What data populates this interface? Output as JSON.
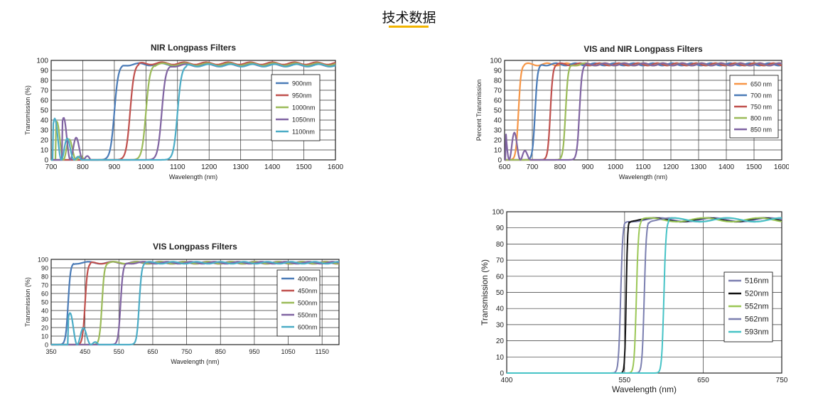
{
  "page": {
    "title": "技术数据"
  },
  "chart_data": [
    {
      "type": "line",
      "title": "NIR Longpass Filters",
      "xlabel": "Wavelength (nm)",
      "ylabel": "Transmission (%)",
      "xlim": [
        700,
        1600
      ],
      "ylim": [
        0,
        100
      ],
      "xticks": [
        700,
        800,
        900,
        1000,
        1100,
        1200,
        1300,
        1400,
        1500,
        1600
      ],
      "yticks": [
        0,
        10,
        20,
        30,
        40,
        50,
        60,
        70,
        80,
        90,
        100
      ],
      "grid": true,
      "legend_position": "right",
      "series": [
        {
          "name": "900nm",
          "color": "#4a7bb7",
          "cutoff": 900,
          "width": 14,
          "plateau": 96,
          "ripple_start": 705,
          "ripple_amp": 0
        },
        {
          "name": "950nm",
          "color": "#c0504d",
          "cutoff": 950,
          "width": 14,
          "plateau": 97,
          "ripple_start": 710,
          "ripple_amp": 0
        },
        {
          "name": "1000nm",
          "color": "#9bbb59",
          "cutoff": 1000,
          "width": 14,
          "plateau": 96,
          "ripple_start": 715,
          "ripple_amp": 40
        },
        {
          "name": "1050nm",
          "color": "#8064a2",
          "cutoff": 1050,
          "width": 14,
          "plateau": 95,
          "ripple_start": 735,
          "ripple_amp": 45
        },
        {
          "name": "1100nm",
          "color": "#4bacc6",
          "cutoff": 1100,
          "width": 14,
          "plateau": 95,
          "ripple_start": 705,
          "ripple_amp": 45
        }
      ]
    },
    {
      "type": "line",
      "title": "VIS and NIR Longpass Filters",
      "xlabel": "Wavelength (nm)",
      "ylabel": "Percent Transmission",
      "xlim": [
        600,
        1600
      ],
      "ylim": [
        0,
        100
      ],
      "xticks": [
        600,
        700,
        800,
        900,
        1000,
        1100,
        1200,
        1300,
        1400,
        1500,
        1600
      ],
      "yticks": [
        0,
        10,
        20,
        30,
        40,
        50,
        60,
        70,
        80,
        90,
        100
      ],
      "grid": true,
      "legend_position": "right",
      "series": [
        {
          "name": "650 nm",
          "color": "#f79646",
          "cutoff": 650,
          "width": 10,
          "plateau": 96,
          "ripple_start": 0,
          "ripple_amp": 0
        },
        {
          "name": "700 nm",
          "color": "#4a7bb7",
          "cutoff": 710,
          "width": 10,
          "plateau": 96,
          "ripple_start": 0,
          "ripple_amp": 0
        },
        {
          "name": "750 nm",
          "color": "#c0504d",
          "cutoff": 765,
          "width": 10,
          "plateau": 96,
          "ripple_start": 0,
          "ripple_amp": 0
        },
        {
          "name": "800 nm",
          "color": "#9bbb59",
          "cutoff": 820,
          "width": 10,
          "plateau": 96,
          "ripple_start": 0,
          "ripple_amp": 0
        },
        {
          "name": "850 nm",
          "color": "#8064a2",
          "cutoff": 870,
          "width": 10,
          "plateau": 96,
          "ripple_start": 605,
          "ripple_amp": 42
        }
      ]
    },
    {
      "type": "line",
      "title": "VIS Longpass Filters",
      "xlabel": "Wavelength (nm)",
      "ylabel": "Transmission (%)",
      "xlim": [
        350,
        1200
      ],
      "ylim": [
        0,
        100
      ],
      "xticks": [
        350,
        450,
        550,
        650,
        750,
        850,
        950,
        1050,
        1150
      ],
      "yticks": [
        0,
        10,
        20,
        30,
        40,
        50,
        60,
        70,
        80,
        90,
        100
      ],
      "grid": true,
      "legend_position": "right",
      "series": [
        {
          "name": "400nm",
          "color": "#4a7bb7",
          "cutoff": 400,
          "width": 8,
          "plateau": 96,
          "ripple_start": 0,
          "ripple_amp": 0
        },
        {
          "name": "450nm",
          "color": "#c0504d",
          "cutoff": 450,
          "width": 8,
          "plateau": 96,
          "ripple_start": 0,
          "ripple_amp": 0
        },
        {
          "name": "500nm",
          "color": "#9bbb59",
          "cutoff": 500,
          "width": 8,
          "plateau": 96,
          "ripple_start": 0,
          "ripple_amp": 0
        },
        {
          "name": "550nm",
          "color": "#8064a2",
          "cutoff": 555,
          "width": 8,
          "plateau": 96,
          "ripple_start": 0,
          "ripple_amp": 0
        },
        {
          "name": "600nm",
          "color": "#4bacc6",
          "cutoff": 610,
          "width": 8,
          "plateau": 96,
          "ripple_start": 400,
          "ripple_amp": 40
        }
      ]
    },
    {
      "type": "line",
      "title": "",
      "xlabel": "Wavelength (nm)",
      "ylabel": "Transmission (%)",
      "xlim": [
        400,
        750
      ],
      "ylim": [
        0,
        100
      ],
      "xticks": [
        400,
        550,
        650,
        750
      ],
      "yticks": [
        0,
        10,
        20,
        30,
        40,
        50,
        60,
        70,
        80,
        90,
        100
      ],
      "grid": true,
      "legend_position": "right",
      "series": [
        {
          "name": "516nm",
          "color": "#7b7fb0",
          "cutoff": 545,
          "width": 3,
          "plateau": 95,
          "ripple_start": 0,
          "ripple_amp": 0
        },
        {
          "name": "520nm",
          "color": "#111111",
          "cutoff": 552,
          "width": 2,
          "plateau": 95,
          "ripple_start": 0,
          "ripple_amp": 0
        },
        {
          "name": "552nm",
          "color": "#9bc756",
          "cutoff": 565,
          "width": 3,
          "plateau": 95,
          "ripple_start": 0,
          "ripple_amp": 0
        },
        {
          "name": "562nm",
          "color": "#7b7fb0",
          "cutoff": 575,
          "width": 3,
          "plateau": 95,
          "ripple_start": 0,
          "ripple_amp": 0
        },
        {
          "name": "593nm",
          "color": "#46c3c6",
          "cutoff": 600,
          "width": 3,
          "plateau": 95,
          "ripple_start": 0,
          "ripple_amp": 0
        }
      ]
    }
  ]
}
